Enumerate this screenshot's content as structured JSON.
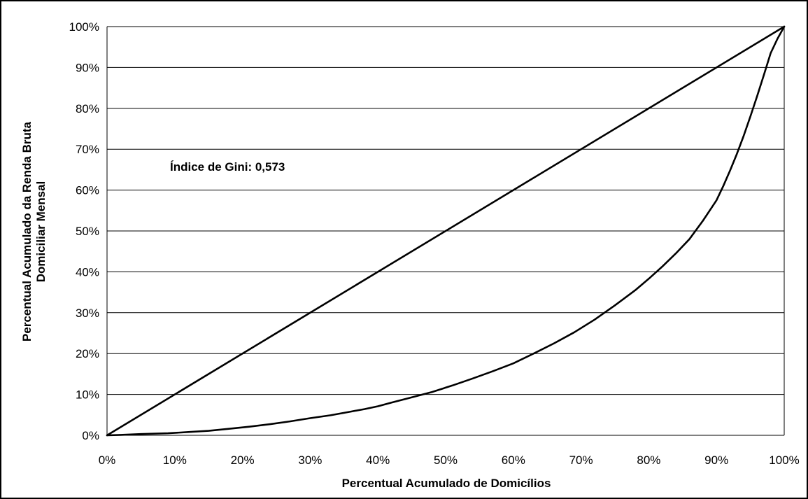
{
  "chart_data": {
    "type": "line",
    "xlabel": "Percentual Acumulado de Domicílios",
    "ylabel_lines": [
      "Percentual Acumulado da Renda Bruta",
      "Domiciliar Mensal"
    ],
    "annotation": "Índice de Gini: 0,573",
    "xlim": [
      0,
      100
    ],
    "ylim": [
      0,
      100
    ],
    "x_tick_labels": [
      "0%",
      "10%",
      "20%",
      "30%",
      "40%",
      "50%",
      "60%",
      "70%",
      "80%",
      "90%",
      "100%"
    ],
    "y_tick_labels": [
      "0%",
      "10%",
      "20%",
      "30%",
      "40%",
      "50%",
      "60%",
      "70%",
      "80%",
      "90%",
      "100%"
    ],
    "grid": "horizontal",
    "legend": "none",
    "series": [
      {
        "role": "equality-line",
        "x": [
          0,
          100
        ],
        "y": [
          0,
          100
        ]
      },
      {
        "role": "lorenz-curve",
        "x": [
          0,
          2,
          5,
          9,
          12,
          15,
          18,
          21,
          24,
          27,
          30,
          33,
          36,
          38,
          40,
          42,
          45,
          48,
          51,
          54,
          57,
          60,
          63,
          66,
          69,
          72,
          75,
          78,
          80,
          82,
          84,
          86,
          88,
          90,
          91,
          92,
          93,
          94,
          95,
          96,
          97,
          98,
          99,
          100
        ],
        "y": [
          0,
          0.1,
          0.3,
          0.5,
          0.8,
          1.1,
          1.6,
          2.1,
          2.7,
          3.4,
          4.2,
          4.9,
          5.8,
          6.4,
          7.1,
          8.0,
          9.3,
          10.6,
          12.2,
          13.9,
          15.7,
          17.6,
          20.0,
          22.5,
          25.2,
          28.3,
          31.8,
          35.5,
          38.3,
          41.3,
          44.5,
          48.0,
          52.5,
          57.5,
          61.0,
          64.8,
          68.8,
          73.2,
          78.0,
          83.0,
          88.2,
          93.5,
          97.0,
          100
        ]
      }
    ]
  }
}
